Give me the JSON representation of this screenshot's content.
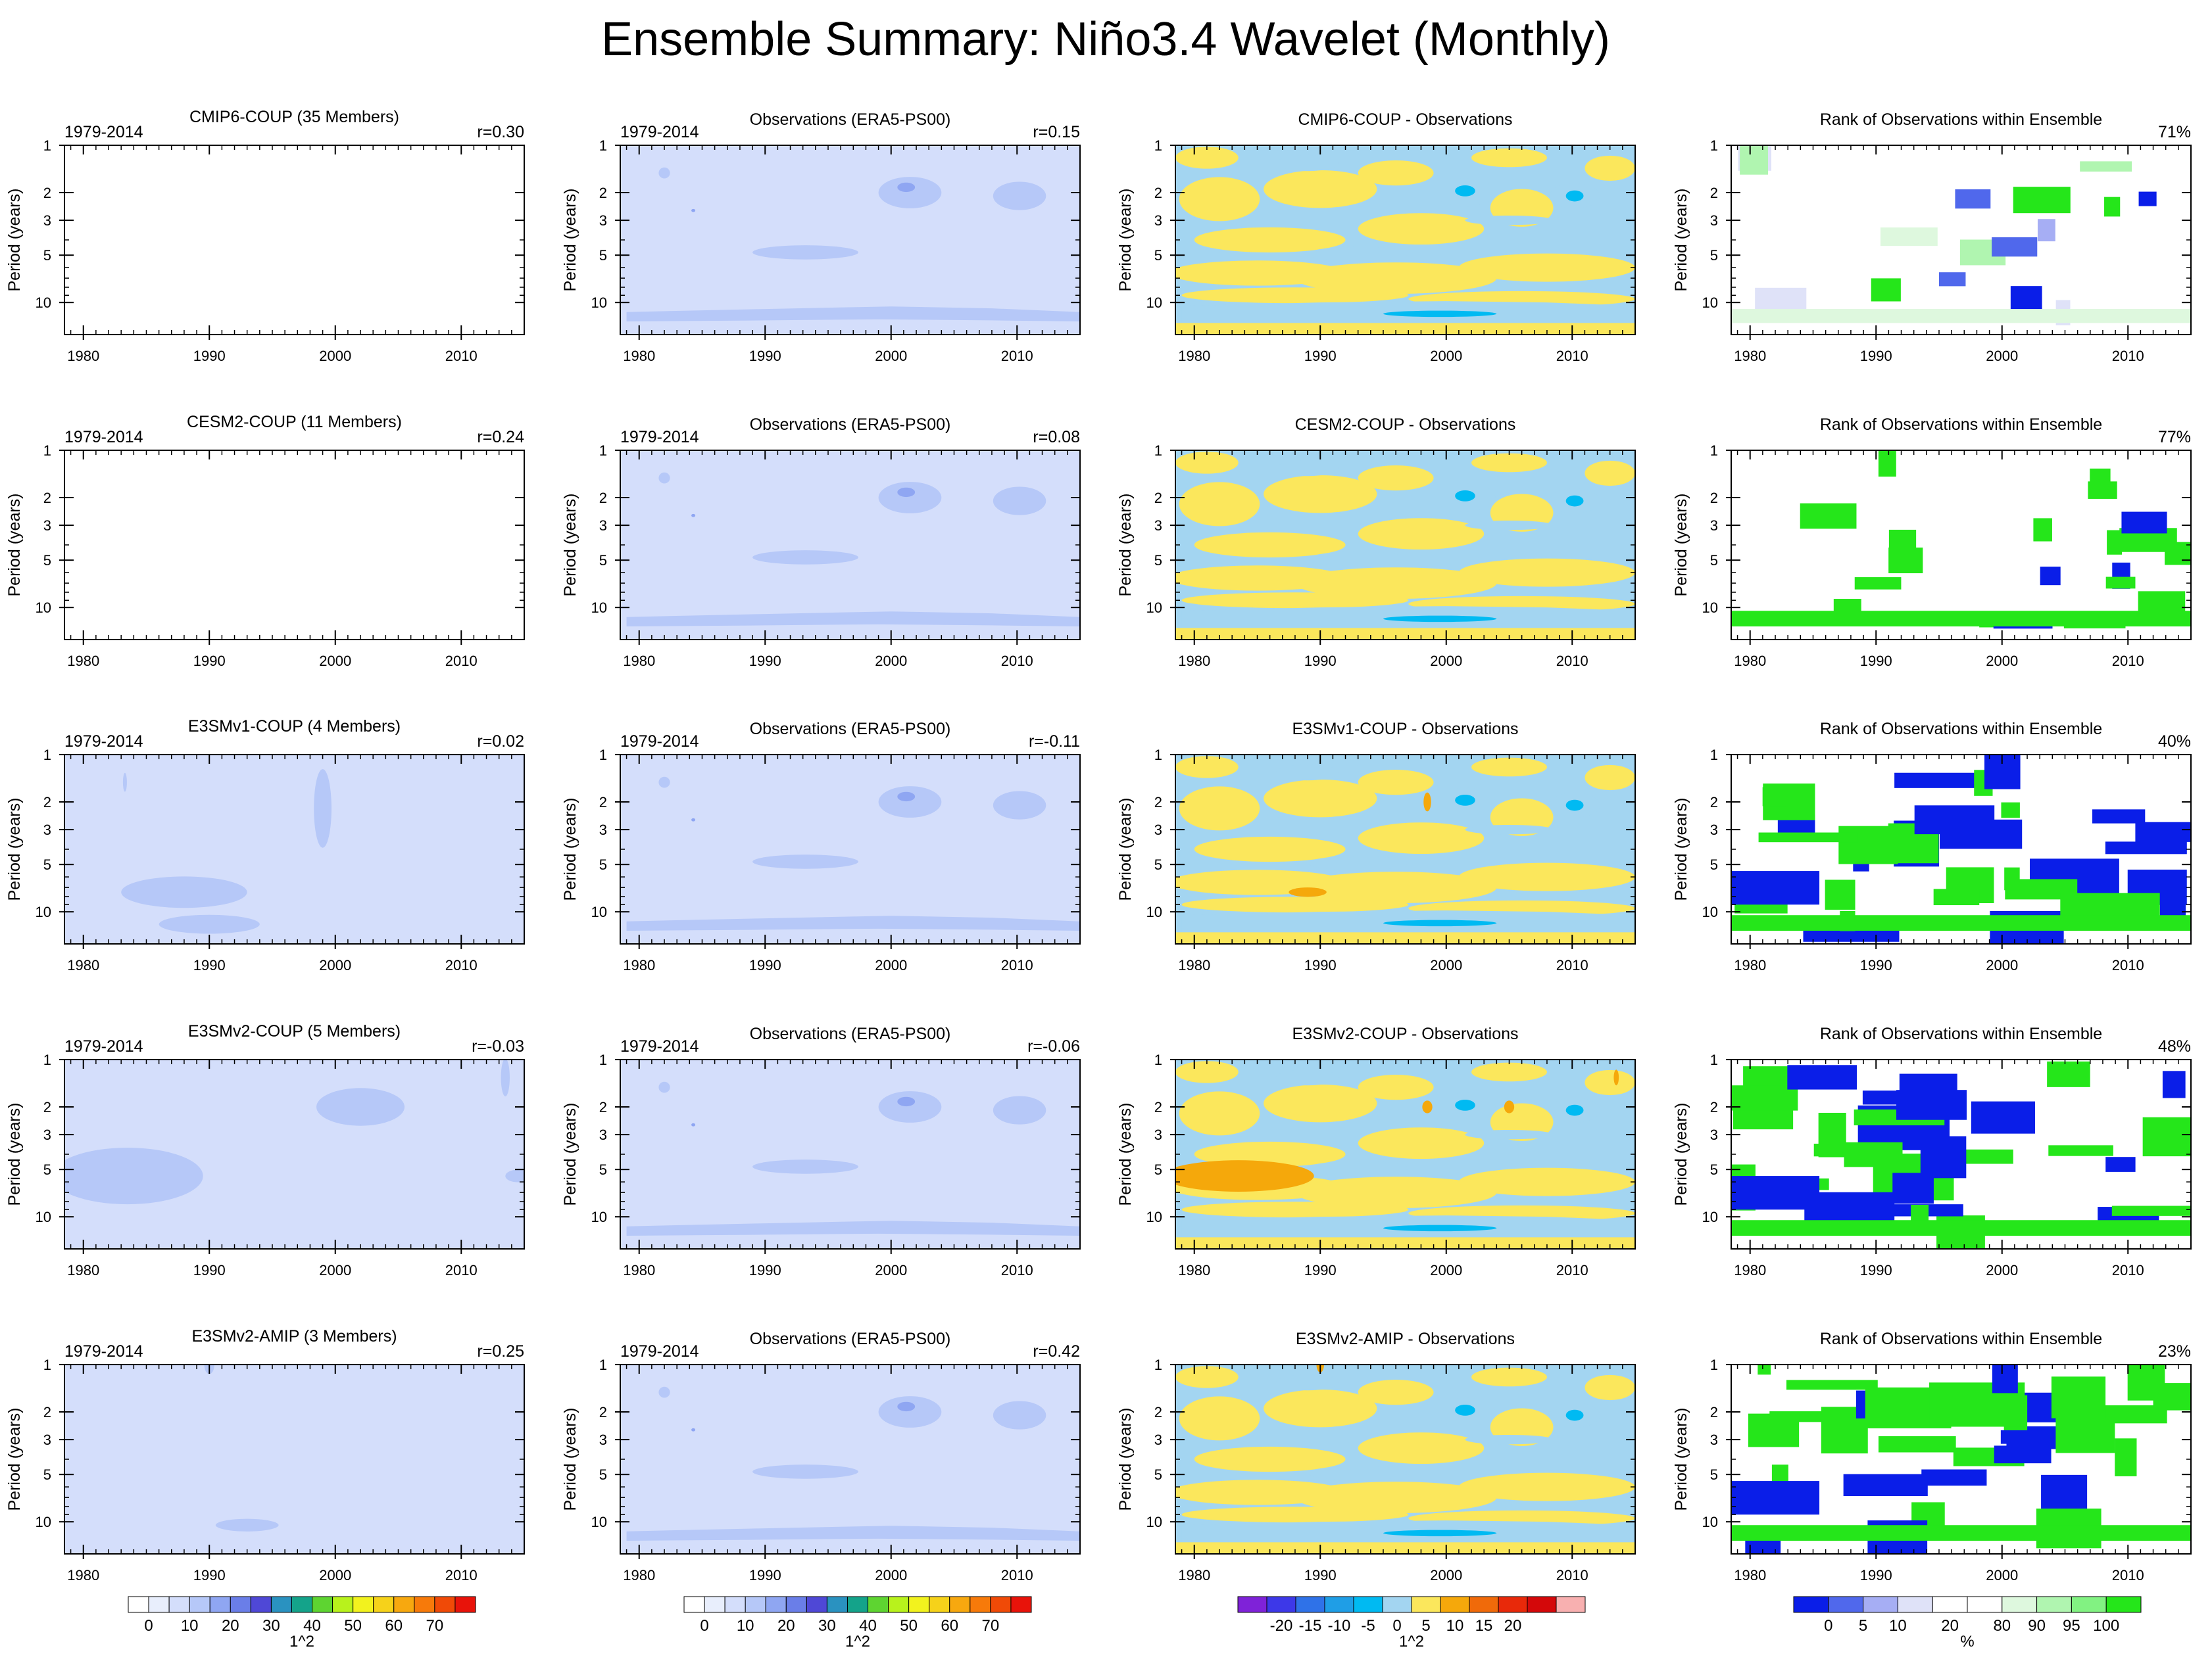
{
  "title": "Ensemble Summary: Niño3.4 Wavelet (Monthly)",
  "colors": {
    "wavelet": [
      "#ffffff",
      "#e8eefc",
      "#d4defb",
      "#b6c8f8",
      "#8fa6f2",
      "#6a7ee8",
      "#4f48d6",
      "#2a92c0",
      "#14a38a",
      "#5ed431",
      "#b8f21c",
      "#f2f21e",
      "#f6d21a",
      "#f7a80f",
      "#f77a0a",
      "#f04a07",
      "#e8130a"
    ],
    "diff": [
      "#7f22d8",
      "#3d38e8",
      "#2f72e8",
      "#1f9ee6",
      "#00baf2",
      "#a3d5f1",
      "#fbe75c",
      "#f5a80b",
      "#f06a0a",
      "#e8290a",
      "#d4080a",
      "#f8b0b0"
    ],
    "rank": [
      "#0a1ee8",
      "#5068ec",
      "#a6aef4",
      "#dfe2f8",
      "#ffffff",
      "#ffffff",
      "#def8de",
      "#b0f5b0",
      "#82f282",
      "#25e61a"
    ]
  },
  "period_axis": {
    "label": "Period (years)",
    "ticks": [
      "1",
      "2",
      "3",
      "5",
      "10"
    ]
  },
  "time_axis": {
    "ticks": [
      "1980",
      "1990",
      "2000",
      "2010"
    ]
  },
  "rows": [
    {
      "model": {
        "title": "CMIP6-COUP (35 Members)",
        "title_color": "#1a6c8a",
        "left": "1979-2014",
        "right": "r=0.30",
        "blobs": []
      },
      "obs": {
        "title": "Observations (ERA5-PS00)",
        "left": "1979-2014",
        "right": "r=0.15"
      },
      "diff": {
        "title": "CMIP6-COUP - Observations",
        "orange": []
      },
      "rank": {
        "title": "Rank of Observations within Ensemble",
        "right": "71%",
        "style": "light",
        "seed": 11
      }
    },
    {
      "model": {
        "title": "CESM2-COUP (11 Members)",
        "title_color": "#5a8a5a",
        "left": "1979-2014",
        "right": "r=0.24",
        "blobs": []
      },
      "obs": {
        "title": "Observations (ERA5-PS00)",
        "left": "1979-2014",
        "right": "r=0.08"
      },
      "diff": {
        "title": "CESM2-COUP - Observations",
        "orange": []
      },
      "rank": {
        "title": "Rank of Observations within Ensemble",
        "right": "77%",
        "style": "medium",
        "seed": 23
      }
    },
    {
      "model": {
        "title": "E3SMv1-COUP (4 Members)",
        "title_color": "#909090",
        "left": "1979-2014",
        "right": "r=0.02",
        "blobs": [
          [
            1988,
            7.5,
            5,
            0.1
          ],
          [
            1990,
            12,
            4,
            0.06
          ],
          [
            1999,
            2.2,
            0.7,
            0.25
          ],
          [
            1983.3,
            1.5,
            0.15,
            0.06
          ]
        ]
      },
      "obs": {
        "title": "Observations (ERA5-PS00)",
        "left": "1979-2014",
        "right": "r=-0.11"
      },
      "diff": {
        "title": "E3SMv1-COUP - Observations",
        "orange": [
          [
            1998.5,
            2,
            0.3,
            0.06
          ],
          [
            1989,
            7.5,
            1.5,
            0.03
          ]
        ]
      },
      "rank": {
        "title": "Rank of Observations within Ensemble",
        "right": "40%",
        "style": "heavy",
        "seed": 37
      }
    },
    {
      "model": {
        "title": "E3SMv2-COUP (5 Members)",
        "title_color": "#a8501a",
        "left": "1979-2014",
        "right": "r=-0.03",
        "blobs": [
          [
            1983.5,
            5.5,
            6,
            0.18
          ],
          [
            2002,
            2,
            3.5,
            0.12
          ],
          [
            2013.5,
            1.3,
            0.35,
            0.12
          ],
          [
            2014.5,
            5.5,
            1,
            0.04
          ]
        ]
      },
      "obs": {
        "title": "Observations (ERA5-PS00)",
        "left": "1979-2014",
        "right": "r=-0.06"
      },
      "diff": {
        "title": "E3SMv2-COUP - Observations",
        "orange": [
          [
            1983.5,
            5.5,
            6,
            0.1
          ],
          [
            2013.5,
            1.3,
            0.2,
            0.05
          ],
          [
            1998.5,
            2,
            0.4,
            0.04
          ],
          [
            2005,
            2,
            0.4,
            0.04
          ]
        ]
      },
      "rank": {
        "title": "Rank of Observations within Ensemble",
        "right": "48%",
        "style": "heavy",
        "seed": 53
      }
    },
    {
      "model": {
        "title": "E3SMv2-AMIP (3 Members)",
        "title_color": "#8a6ad6",
        "left": "1979-2014",
        "right": "r=0.25",
        "blobs": [
          [
            1993,
            10.5,
            2.5,
            0.04
          ],
          [
            1990,
            1,
            0.4,
            0.06
          ]
        ]
      },
      "obs": {
        "title": "Observations (ERA5-PS00)",
        "left": "1979-2014",
        "right": "r=0.42"
      },
      "diff": {
        "title": "E3SMv2-AMIP - Observations",
        "orange": [
          [
            1990,
            1,
            0.3,
            0.05
          ]
        ]
      },
      "rank": {
        "title": "Rank of Observations within Ensemble",
        "right": "23%",
        "style": "heavy",
        "seed": 71
      }
    }
  ],
  "colorbars": {
    "wavelet": {
      "labels": [
        "0",
        "10",
        "20",
        "30",
        "40",
        "50",
        "60",
        "70"
      ],
      "unit": "1^2"
    },
    "diff": {
      "labels": [
        "-20",
        "-15",
        "-10",
        "-5",
        "0",
        "5",
        "10",
        "15",
        "20"
      ],
      "unit": "1^2"
    },
    "rank": {
      "labels": [
        "0",
        "5",
        "10",
        "20",
        "80",
        "90",
        "95",
        "100"
      ],
      "unit": "%"
    }
  },
  "chart_data": {
    "type": "heatmap",
    "title": "Ensemble Summary: Niño3.4 Wavelet (Monthly)",
    "xlabel": "",
    "ylabel": "Period (years)",
    "xlim": [
      1978.5,
      2015
    ],
    "ylim": [
      1,
      16
    ],
    "y_scale": "log",
    "x_ticks": [
      1980,
      1990,
      2000,
      2010
    ],
    "y_ticks": [
      1,
      2,
      3,
      5,
      10
    ],
    "period_years": "1979-2014",
    "panels": [
      {
        "row": 1,
        "model": "CMIP6-COUP",
        "members": 35,
        "model_vs_obs_r": 0.3,
        "obs_r": 0.15,
        "obs_rank_percent": 71
      },
      {
        "row": 2,
        "model": "CESM2-COUP",
        "members": 11,
        "model_vs_obs_r": 0.24,
        "obs_r": 0.08,
        "obs_rank_percent": 77
      },
      {
        "row": 3,
        "model": "E3SMv1-COUP",
        "members": 4,
        "model_vs_obs_r": 0.02,
        "obs_r": -0.11,
        "obs_rank_percent": 40
      },
      {
        "row": 4,
        "model": "E3SMv2-COUP",
        "members": 5,
        "model_vs_obs_r": -0.03,
        "obs_r": -0.06,
        "obs_rank_percent": 48
      },
      {
        "row": 5,
        "model": "E3SMv2-AMIP",
        "members": 3,
        "model_vs_obs_r": 0.25,
        "obs_r": 0.42,
        "obs_rank_percent": 23
      }
    ],
    "wavelet_levels": [
      0,
      5,
      10,
      15,
      20,
      25,
      30,
      35,
      40,
      45,
      50,
      55,
      60,
      65,
      70,
      75
    ],
    "diff_levels": [
      -20,
      -17.5,
      -15,
      -12.5,
      -10,
      -7.5,
      -5,
      -2.5,
      0,
      2.5,
      5,
      10,
      15,
      20
    ],
    "rank_levels": [
      0,
      5,
      10,
      20,
      80,
      90,
      95,
      100
    ],
    "obs_power_features": [
      {
        "year": 2001,
        "period": 2,
        "level": 10
      },
      {
        "year": 2010,
        "period": 2.1,
        "level": 5
      },
      {
        "year": 1993,
        "period": 4.8,
        "level": 5
      },
      {
        "year": 1999,
        "period": 12,
        "level": 5
      },
      {
        "year": 1982,
        "period": 1.5,
        "level": 5
      }
    ]
  }
}
